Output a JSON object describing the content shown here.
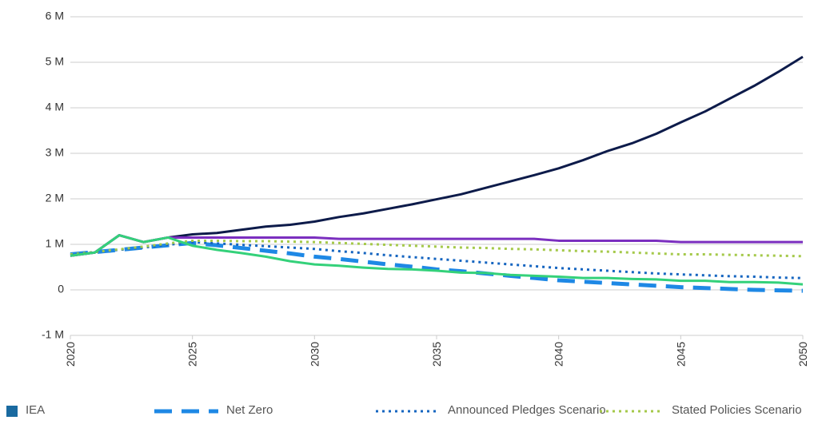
{
  "chart_data": {
    "type": "line",
    "x": [
      2020,
      2021,
      2022,
      2023,
      2024,
      2025,
      2026,
      2027,
      2028,
      2029,
      2030,
      2031,
      2032,
      2033,
      2034,
      2035,
      2036,
      2037,
      2038,
      2039,
      2040,
      2041,
      2042,
      2043,
      2044,
      2045,
      2046,
      2047,
      2048,
      2049,
      2050
    ],
    "xlim": [
      2020,
      2050
    ],
    "xticks": [
      2020,
      2025,
      2030,
      2035,
      2040,
      2045,
      2050
    ],
    "ylim": [
      -1000000,
      6000000
    ],
    "yticks": [
      {
        "value": -1000000,
        "label": "-1 M"
      },
      0,
      {
        "value": 1000000,
        "label": "1 M"
      },
      {
        "value": 2000000,
        "label": "2 M"
      },
      {
        "value": 3000000,
        "label": "3 M"
      },
      {
        "value": 4000000,
        "label": "4 M"
      },
      {
        "value": 5000000,
        "label": "5 M"
      },
      {
        "value": 6000000,
        "label": "6 M"
      }
    ],
    "grid": true,
    "legend_title": "IEA",
    "legend_title_color": "#1a6aa0",
    "series": [
      {
        "color": "#0d1b4a",
        "dash": "solid",
        "values": [
          750000,
          820000,
          1200000,
          1050000,
          1150000,
          1220000,
          1250000,
          1320000,
          1390000,
          1430000,
          1500000,
          1600000,
          1680000,
          1780000,
          1880000,
          1990000,
          2100000,
          2240000,
          2380000,
          2520000,
          2670000,
          2850000,
          3050000,
          3220000,
          3430000,
          3680000,
          3920000,
          4200000,
          4480000,
          4790000,
          5120000
        ]
      },
      {
        "color": "#7b2fbf",
        "dash": "solid",
        "values": [
          750000,
          820000,
          1200000,
          1050000,
          1150000,
          1150000,
          1150000,
          1150000,
          1150000,
          1150000,
          1150000,
          1120000,
          1120000,
          1120000,
          1120000,
          1120000,
          1120000,
          1120000,
          1120000,
          1120000,
          1080000,
          1080000,
          1080000,
          1080000,
          1080000,
          1050000,
          1050000,
          1050000,
          1050000,
          1050000,
          1050000
        ]
      },
      {
        "color": "#34d17a",
        "dash": "solid",
        "values": [
          750000,
          820000,
          1200000,
          1050000,
          1150000,
          970000,
          880000,
          810000,
          730000,
          630000,
          560000,
          530000,
          490000,
          460000,
          450000,
          420000,
          380000,
          370000,
          330000,
          310000,
          290000,
          260000,
          260000,
          240000,
          230000,
          200000,
          200000,
          170000,
          170000,
          160000,
          120000
        ]
      },
      {
        "name": "Net Zero",
        "color": "#1e88e5",
        "dash": "dashed",
        "values": [
          780000,
          830000,
          880000,
          930000,
          980000,
          1030000,
          980000,
          920000,
          860000,
          800000,
          730000,
          680000,
          620000,
          560000,
          510000,
          450000,
          410000,
          360000,
          310000,
          260000,
          210000,
          180000,
          150000,
          120000,
          90000,
          60000,
          40000,
          20000,
          0,
          -10000,
          -20000
        ]
      },
      {
        "name": "Announced Pledges Scenario",
        "color": "#1565c0",
        "dash": "dotted",
        "values": [
          780000,
          830000,
          880000,
          930000,
          990000,
          1050000,
          1020000,
          990000,
          960000,
          930000,
          900000,
          850000,
          810000,
          760000,
          720000,
          680000,
          640000,
          600000,
          560000,
          520000,
          480000,
          450000,
          420000,
          390000,
          360000,
          340000,
          320000,
          300000,
          290000,
          270000,
          260000
        ]
      },
      {
        "name": "Stated Policies Scenario",
        "color": "#a5c94a",
        "dash": "dotted",
        "values": [
          780000,
          830000,
          890000,
          950000,
          1020000,
          1080000,
          1080000,
          1070000,
          1070000,
          1060000,
          1050000,
          1030000,
          1010000,
          990000,
          970000,
          950000,
          930000,
          920000,
          900000,
          890000,
          870000,
          850000,
          840000,
          820000,
          800000,
          780000,
          780000,
          770000,
          760000,
          750000,
          740000
        ]
      }
    ]
  }
}
